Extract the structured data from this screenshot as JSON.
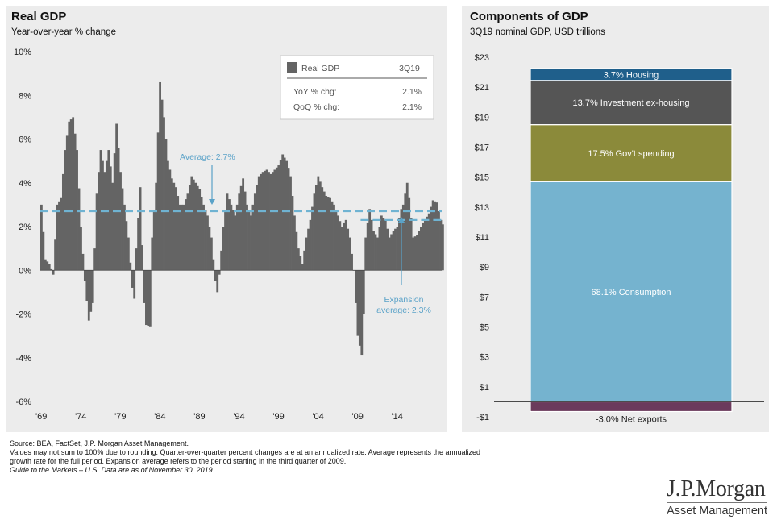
{
  "left_chart": {
    "title": "Real GDP",
    "subtitle": "Year-over-year % change",
    "legend": {
      "series_label": "Real GDP",
      "period": "3Q19",
      "rows": [
        {
          "label": "YoY % chg:",
          "value": "2.1%"
        },
        {
          "label": "QoQ % chg:",
          "value": "2.1%"
        }
      ]
    },
    "annotations": {
      "average": "Average: 2.7%",
      "expansion_line1": "Expansion",
      "expansion_line2": "average: 2.3%"
    },
    "colors": {
      "bars": "#646464",
      "average_line": "#6fb3d2"
    }
  },
  "right_chart": {
    "title": "Components of GDP",
    "subtitle": "3Q19 nominal GDP, USD trillions",
    "colors": {
      "Housing": "#1f5f8b",
      "Investment ex-housing": "#555555",
      "Gov't spending": "#8b8a3a",
      "Consumption": "#75b3cf",
      "Net exports": "#6b3a5c"
    }
  },
  "chart_data": [
    {
      "type": "bar",
      "title": "Real GDP",
      "subtitle": "Year-over-year % change",
      "ylim": [
        -6,
        10
      ],
      "yticks": [
        "10%",
        "8%",
        "6%",
        "4%",
        "2%",
        "0%",
        "-2%",
        "-4%",
        "-6%"
      ],
      "xticks": [
        "'69",
        "'74",
        "'79",
        "'84",
        "'89",
        "'94",
        "'99",
        "'04",
        "'09",
        "'14"
      ],
      "x_start": 1969,
      "x_end": 2019.75,
      "average": 2.7,
      "expansion_average": 2.3,
      "expansion_start": 2009.5,
      "series": [
        {
          "name": "Real GDP",
          "keyframes": [
            [
              1969.0,
              3.0
            ],
            [
              1969.5,
              0.5
            ],
            [
              1970.0,
              0.3
            ],
            [
              1970.5,
              -0.2
            ],
            [
              1971.0,
              3.0
            ],
            [
              1971.5,
              3.3
            ],
            [
              1972.0,
              5.5
            ],
            [
              1972.5,
              6.8
            ],
            [
              1973.0,
              7.0
            ],
            [
              1973.5,
              5.5
            ],
            [
              1974.0,
              2.0
            ],
            [
              1974.5,
              -0.5
            ],
            [
              1975.0,
              -2.3
            ],
            [
              1975.5,
              -1.5
            ],
            [
              1976.0,
              3.5
            ],
            [
              1976.5,
              5.5
            ],
            [
              1977.0,
              4.5
            ],
            [
              1977.5,
              5.5
            ],
            [
              1978.0,
              4.0
            ],
            [
              1978.5,
              6.7
            ],
            [
              1979.0,
              4.5
            ],
            [
              1979.5,
              3.0
            ],
            [
              1980.0,
              1.5
            ],
            [
              1980.5,
              -0.8
            ],
            [
              1980.75,
              -1.3
            ],
            [
              1981.0,
              1.0
            ],
            [
              1981.5,
              3.8
            ],
            [
              1982.0,
              -1.5
            ],
            [
              1982.25,
              -2.5
            ],
            [
              1982.75,
              -2.6
            ],
            [
              1983.0,
              1.5
            ],
            [
              1983.5,
              4.0
            ],
            [
              1984.0,
              8.6
            ],
            [
              1984.5,
              7.0
            ],
            [
              1985.0,
              5.0
            ],
            [
              1985.5,
              4.2
            ],
            [
              1986.0,
              3.8
            ],
            [
              1986.5,
              3.0
            ],
            [
              1987.0,
              3.0
            ],
            [
              1987.5,
              3.5
            ],
            [
              1988.0,
              4.3
            ],
            [
              1988.5,
              4.0
            ],
            [
              1989.0,
              3.7
            ],
            [
              1989.5,
              3.0
            ],
            [
              1990.0,
              2.5
            ],
            [
              1990.5,
              1.5
            ],
            [
              1991.0,
              -0.5
            ],
            [
              1991.25,
              -1.0
            ],
            [
              1991.5,
              -0.2
            ],
            [
              1992.0,
              2.0
            ],
            [
              1992.5,
              3.5
            ],
            [
              1993.0,
              3.0
            ],
            [
              1993.5,
              2.5
            ],
            [
              1994.0,
              3.5
            ],
            [
              1994.5,
              4.2
            ],
            [
              1995.0,
              3.0
            ],
            [
              1995.5,
              2.5
            ],
            [
              1996.0,
              3.5
            ],
            [
              1996.5,
              4.3
            ],
            [
              1997.0,
              4.5
            ],
            [
              1997.5,
              4.6
            ],
            [
              1998.0,
              4.4
            ],
            [
              1998.5,
              4.6
            ],
            [
              1999.0,
              4.8
            ],
            [
              1999.5,
              5.3
            ],
            [
              2000.0,
              5.0
            ],
            [
              2000.5,
              4.3
            ],
            [
              2001.0,
              2.5
            ],
            [
              2001.5,
              1.0
            ],
            [
              2002.0,
              0.3
            ],
            [
              2002.5,
              1.5
            ],
            [
              2003.0,
              2.3
            ],
            [
              2003.5,
              3.5
            ],
            [
              2004.0,
              4.3
            ],
            [
              2004.5,
              3.8
            ],
            [
              2005.0,
              3.4
            ],
            [
              2005.5,
              3.3
            ],
            [
              2006.0,
              3.0
            ],
            [
              2006.5,
              2.5
            ],
            [
              2007.0,
              2.0
            ],
            [
              2007.5,
              2.3
            ],
            [
              2008.0,
              1.5
            ],
            [
              2008.5,
              0.0
            ],
            [
              2008.75,
              -1.5
            ],
            [
              2009.0,
              -3.0
            ],
            [
              2009.5,
              -3.9
            ],
            [
              2009.75,
              -2.0
            ],
            [
              2010.0,
              1.5
            ],
            [
              2010.5,
              2.8
            ],
            [
              2011.0,
              1.8
            ],
            [
              2011.5,
              1.5
            ],
            [
              2012.0,
              2.5
            ],
            [
              2012.5,
              2.3
            ],
            [
              2013.0,
              1.5
            ],
            [
              2013.5,
              1.8
            ],
            [
              2014.0,
              2.0
            ],
            [
              2014.5,
              2.8
            ],
            [
              2014.75,
              3.0
            ],
            [
              2015.0,
              3.5
            ],
            [
              2015.25,
              4.0
            ],
            [
              2015.5,
              3.3
            ],
            [
              2016.0,
              1.5
            ],
            [
              2016.5,
              1.6
            ],
            [
              2017.0,
              2.0
            ],
            [
              2017.5,
              2.3
            ],
            [
              2018.0,
              2.6
            ],
            [
              2018.5,
              3.2
            ],
            [
              2019.0,
              3.1
            ],
            [
              2019.5,
              2.3
            ],
            [
              2019.75,
              2.1
            ]
          ]
        }
      ]
    },
    {
      "type": "bar",
      "subtype": "stacked",
      "title": "Components of GDP",
      "subtitle": "3Q19 nominal GDP, USD trillions",
      "ylim": [
        -1,
        23
      ],
      "yticks": [
        "$23",
        "$21",
        "$19",
        "$17",
        "$15",
        "$13",
        "$11",
        "$9",
        "$7",
        "$5",
        "$3",
        "$1",
        "-$1"
      ],
      "segments": [
        {
          "name": "Net exports",
          "label": "-3.0% Net exports",
          "bottom": -0.65,
          "top": 0
        },
        {
          "name": "Consumption",
          "label": "68.1% Consumption",
          "bottom": 0,
          "top": 14.7
        },
        {
          "name": "Gov't spending",
          "label": "17.5% Gov't  spending",
          "bottom": 14.7,
          "top": 18.5
        },
        {
          "name": "Investment ex-housing",
          "label": "13.7% Investment ex-housing",
          "bottom": 18.5,
          "top": 21.45
        },
        {
          "name": "Housing",
          "label": "3.7% Housing",
          "bottom": 21.45,
          "top": 22.25
        }
      ]
    }
  ],
  "footer": {
    "lines": [
      "Source: BEA, FactSet, J.P. Morgan Asset Management.",
      "Values may not sum to 100% due to rounding. Quarter-over-quarter percent changes are at an annualized rate. Average represents the annualized",
      "growth rate for the full period. Expansion average refers to the period starting in the third quarter of 2009.",
      "Guide to the Markets – U.S. Data are as of November 30, 2019."
    ]
  },
  "logo": {
    "name": "J.P.Morgan",
    "subtitle": "Asset Management"
  }
}
